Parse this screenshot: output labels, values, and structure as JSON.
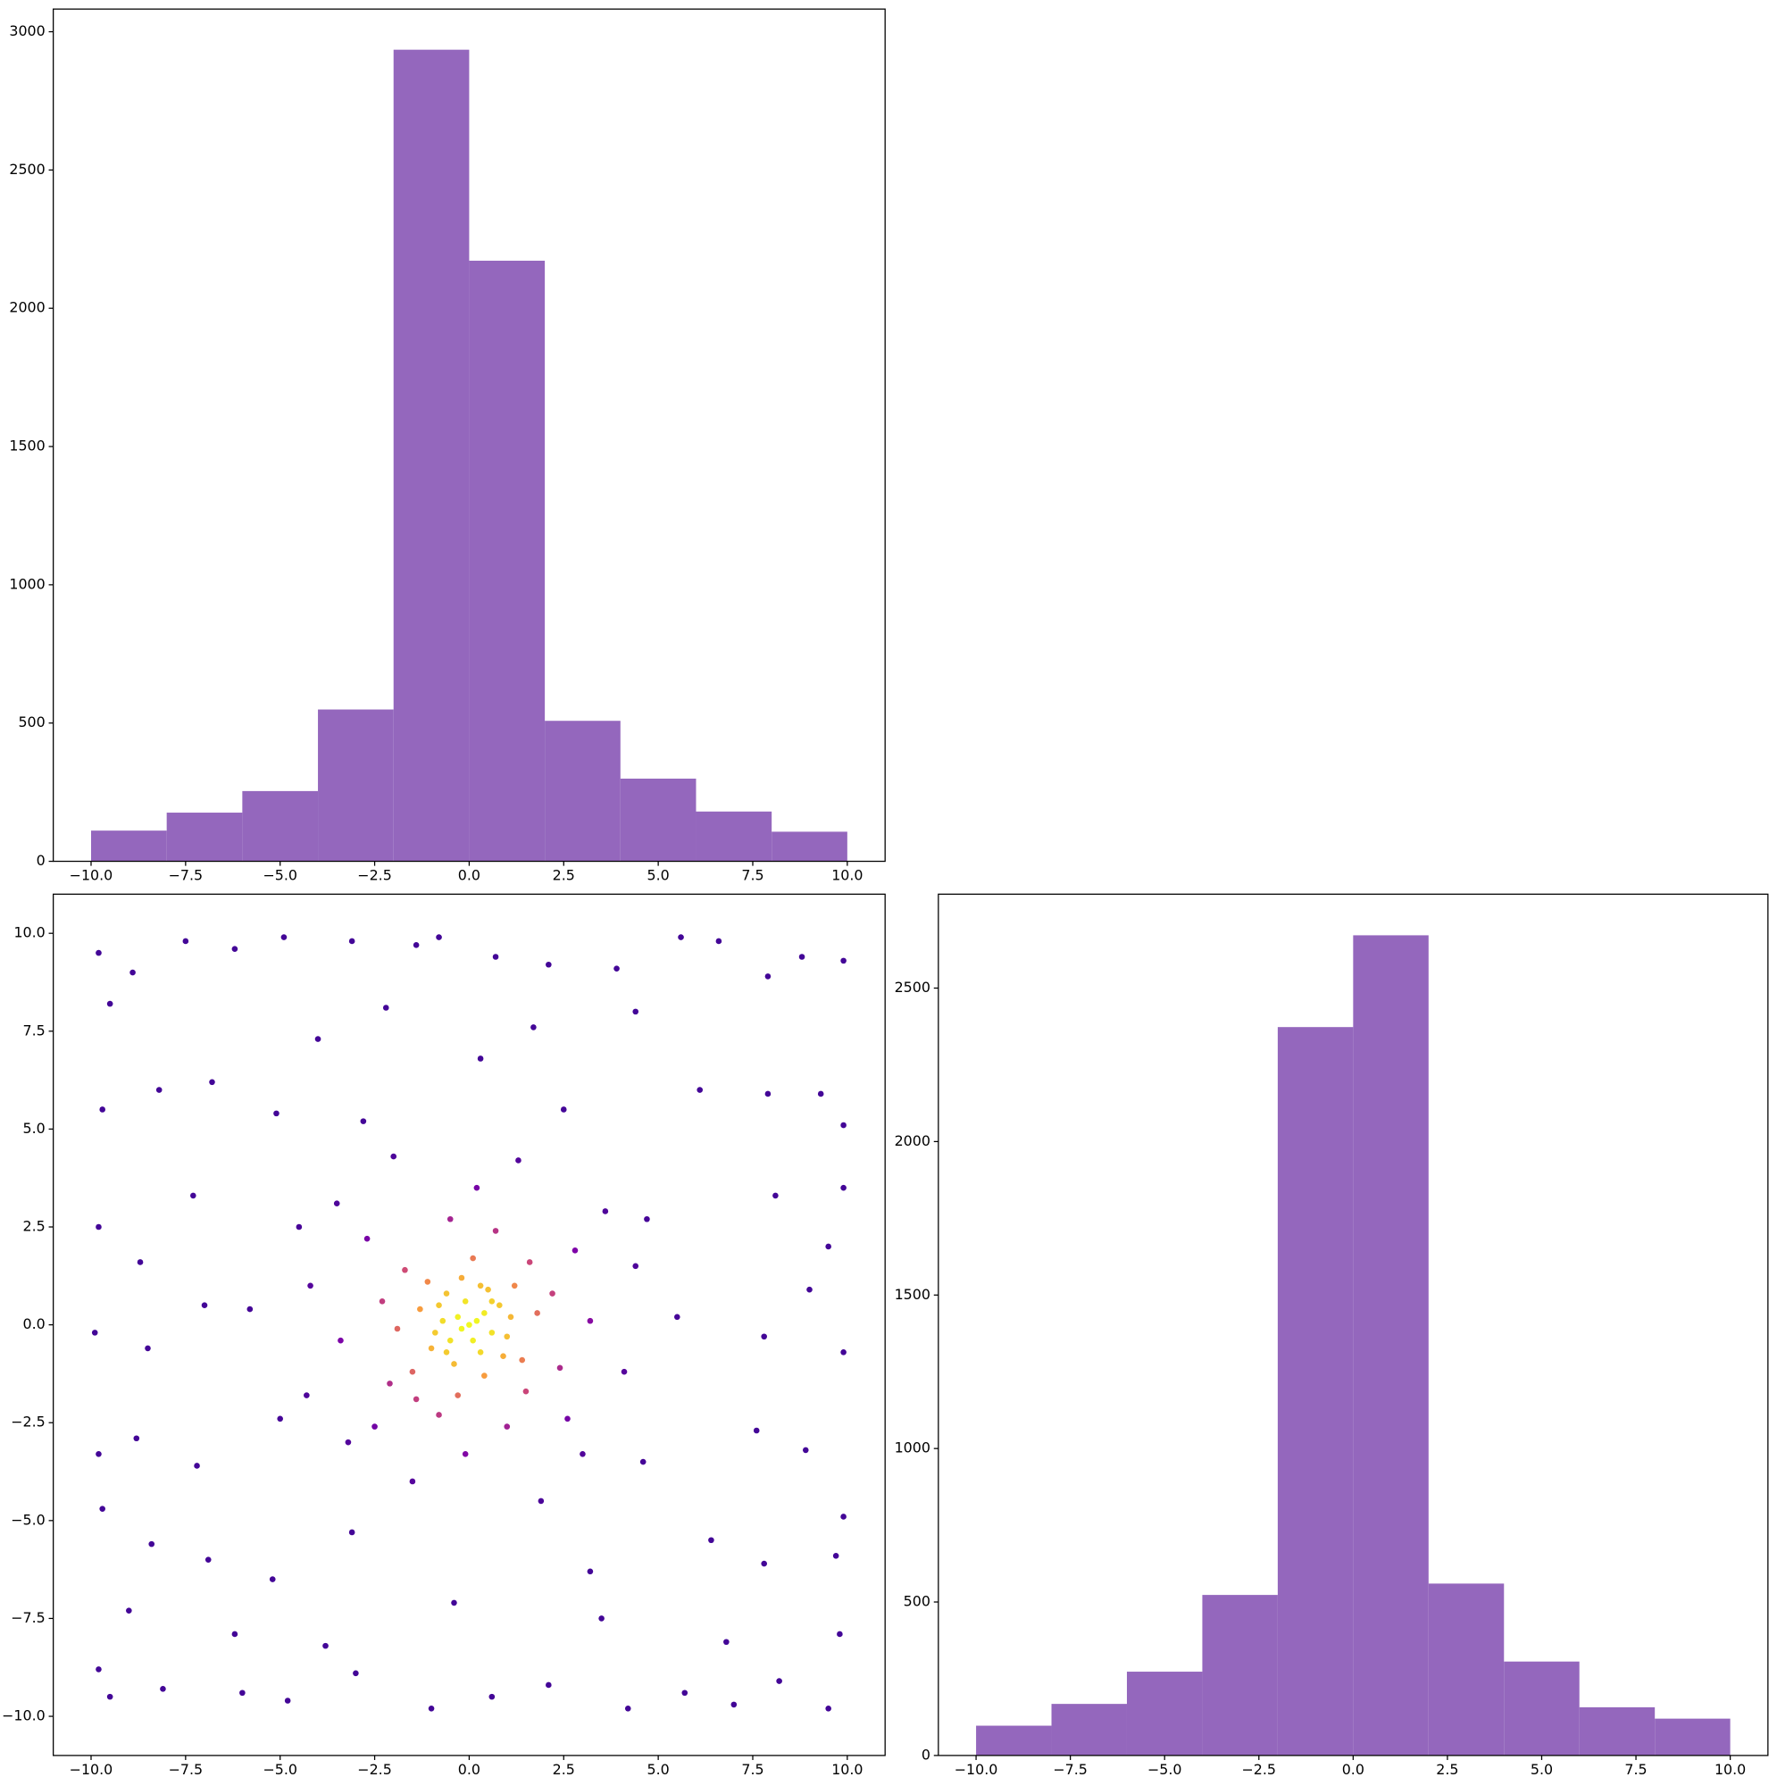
{
  "chart_data": [
    {
      "type": "histogram",
      "color": "#9467bd",
      "bins": [
        -10,
        -8,
        -6,
        -4,
        -2,
        0,
        2,
        4,
        6,
        8,
        10
      ],
      "values": [
        111,
        176,
        254,
        549,
        2935,
        2172,
        508,
        299,
        180,
        107
      ],
      "xlim": [
        -11,
        11
      ],
      "ylim": [
        0,
        3082
      ],
      "xticks": [
        {
          "value": -10,
          "label": "−10.0"
        },
        {
          "value": -7.5,
          "label": "−7.5"
        },
        {
          "value": -5,
          "label": "−5.0"
        },
        {
          "value": -2.5,
          "label": "−2.5"
        },
        {
          "value": 0,
          "label": "0.0"
        },
        {
          "value": 2.5,
          "label": "2.5"
        },
        {
          "value": 5,
          "label": "5.0"
        },
        {
          "value": 7.5,
          "label": "7.5"
        },
        {
          "value": 10,
          "label": "10.0"
        }
      ],
      "yticks": [
        0,
        500,
        1000,
        1500,
        2000,
        2500,
        3000
      ]
    },
    {
      "type": "scatter",
      "colormap": "plasma",
      "x": [
        -9.8,
        -9.5,
        -8.9,
        -7.5,
        -6.2,
        -4.9,
        -3.1,
        -1.4,
        -0.8,
        0.7,
        2.1,
        3.9,
        5.6,
        6.6,
        7.9,
        8.8,
        9.9,
        -9.7,
        -8.2,
        -6.8,
        -5.1,
        6.1,
        7.9,
        9.3,
        9.9,
        -9.8,
        -8.7,
        -7.3,
        8.1,
        9.5,
        9.9,
        -9.9,
        -8.5,
        -7.0,
        7.8,
        9.0,
        9.9,
        -9.8,
        -8.8,
        -7.2,
        7.6,
        8.9,
        9.9,
        -9.7,
        -8.4,
        -6.9,
        -5.2,
        6.4,
        7.8,
        9.7,
        -9.8,
        -9.5,
        -8.1,
        -6.0,
        -4.8,
        -3.0,
        -1.0,
        0.6,
        2.1,
        4.2,
        5.7,
        7.0,
        8.2,
        9.5,
        -9.0,
        -6.2,
        -3.8,
        3.5,
        6.8,
        9.8,
        -4.0,
        -2.2,
        1.7,
        4.4,
        -4.5,
        4.7,
        -5.0,
        4.6,
        -2.8,
        2.5,
        -3.1,
        3.2,
        0.3,
        -0.4,
        5.5,
        -5.8,
        0,
        0.2,
        -0.3,
        0.1,
        -0.2,
        0.4,
        -0.5,
        0.6,
        -0.1,
        0.3,
        -0.7,
        0.8,
        -0.6,
        0.9,
        -1.0,
        1.1,
        -0.2,
        0.4,
        -1.3,
        1.2,
        -1.1,
        1.4,
        -1.5,
        0.1,
        -0.3,
        1.8,
        -1.9,
        1.6,
        -1.7,
        1.5,
        -1.4,
        2.2,
        -2.3,
        0.7,
        -0.8,
        2.4,
        -2.1,
        1.0,
        -0.5,
        2.8,
        -2.7,
        2.6,
        -2.5,
        3.2,
        -3.4,
        0.2,
        -0.1,
        3.6,
        -3.5,
        3.0,
        -3.2,
        4.1,
        -4.2,
        1.3,
        -1.5,
        1.9,
        -2.0,
        4.4,
        -4.3,
        0.5,
        -0.9,
        0.3,
        -0.4,
        1.0,
        -0.8,
        0.6,
        -0.6
      ],
      "values": [
        9.5,
        8.2,
        9.0,
        9.8,
        9.6,
        9.9,
        9.8,
        9.7,
        9.9,
        9.4,
        9.2,
        9.1,
        9.9,
        9.8,
        8.9,
        9.4,
        9.3,
        5.5,
        6.0,
        6.2,
        5.4,
        6.0,
        5.9,
        5.9,
        5.1,
        2.5,
        1.6,
        3.3,
        3.3,
        2.0,
        3.5,
        -0.2,
        -0.6,
        0.5,
        -0.3,
        0.9,
        -0.7,
        -3.3,
        -2.9,
        -3.6,
        -2.7,
        -3.2,
        -4.9,
        -4.7,
        -5.6,
        -6.0,
        -6.5,
        -5.5,
        -6.1,
        -5.9,
        -8.8,
        -9.5,
        -9.3,
        -9.4,
        -9.6,
        -8.9,
        -9.8,
        -9.5,
        -9.2,
        -9.8,
        -9.4,
        -9.7,
        -9.1,
        -9.8,
        -7.3,
        -7.9,
        -8.2,
        -7.5,
        -8.1,
        -7.9,
        7.3,
        8.1,
        7.6,
        8.0,
        2.5,
        2.7,
        -2.4,
        -3.5,
        5.2,
        5.5,
        -5.3,
        -6.3,
        6.8,
        -7.1,
        0.2,
        0.4,
        0,
        0.1,
        0.2,
        -0.4,
        -0.1,
        0.3,
        -0.4,
        -0.2,
        0.6,
        -0.7,
        0.1,
        0.5,
        0.8,
        -0.8,
        -0.6,
        0.2,
        1.2,
        -1.3,
        0.4,
        1.0,
        1.1,
        -0.9,
        -1.2,
        1.7,
        -1.8,
        0.3,
        -0.1,
        1.6,
        1.4,
        -1.7,
        -1.9,
        0.8,
        0.6,
        2.4,
        -2.3,
        -1.1,
        -1.5,
        -2.6,
        2.7,
        1.9,
        2.2,
        -2.4,
        -2.6,
        0.1,
        -0.4,
        3.5,
        -3.3,
        2.9,
        3.1,
        -3.3,
        -3.0,
        -1.2,
        1.0,
        4.2,
        -4.0,
        -4.5,
        4.3,
        1.5,
        -1.8,
        0.9,
        -0.2,
        1.0,
        -1.0,
        -0.3,
        0.5,
        0.6,
        -0.7
      ],
      "xlim": [
        -11,
        11
      ],
      "ylim": [
        -11,
        11
      ],
      "xticks": [
        {
          "value": -10,
          "label": "−10.0"
        },
        {
          "value": -7.5,
          "label": "−7.5"
        },
        {
          "value": -5,
          "label": "−5.0"
        },
        {
          "value": -2.5,
          "label": "−2.5"
        },
        {
          "value": 0,
          "label": "0.0"
        },
        {
          "value": 2.5,
          "label": "2.5"
        },
        {
          "value": 5,
          "label": "5.0"
        },
        {
          "value": 7.5,
          "label": "7.5"
        },
        {
          "value": 10,
          "label": "10.0"
        }
      ],
      "yticks": [
        {
          "value": -10,
          "label": "−10.0"
        },
        {
          "value": -7.5,
          "label": "−7.5"
        },
        {
          "value": -5,
          "label": "−5.0"
        },
        {
          "value": -2.5,
          "label": "−2.5"
        },
        {
          "value": 0,
          "label": "0.0"
        },
        {
          "value": 2.5,
          "label": "2.5"
        },
        {
          "value": 5,
          "label": "5.0"
        },
        {
          "value": 7.5,
          "label": "7.5"
        },
        {
          "value": 10,
          "label": "10.0"
        }
      ]
    },
    {
      "type": "histogram",
      "color": "#9467bd",
      "bins": [
        -10,
        -8,
        -6,
        -4,
        -2,
        0,
        2,
        4,
        6,
        8,
        10
      ],
      "values": [
        97,
        168,
        273,
        523,
        2373,
        2672,
        560,
        306,
        157,
        120
      ],
      "xlim": [
        -11,
        11
      ],
      "ylim": [
        0,
        2806
      ],
      "xticks": [
        {
          "value": -10,
          "label": "−10.0"
        },
        {
          "value": -7.5,
          "label": "−7.5"
        },
        {
          "value": -5,
          "label": "−5.0"
        },
        {
          "value": -2.5,
          "label": "−2.5"
        },
        {
          "value": 0,
          "label": "0.0"
        },
        {
          "value": 2.5,
          "label": "2.5"
        },
        {
          "value": 5,
          "label": "5.0"
        },
        {
          "value": 7.5,
          "label": "7.5"
        },
        {
          "value": 10,
          "label": "10.0"
        }
      ],
      "yticks": [
        0,
        500,
        1000,
        1500,
        2000,
        2500
      ]
    }
  ]
}
